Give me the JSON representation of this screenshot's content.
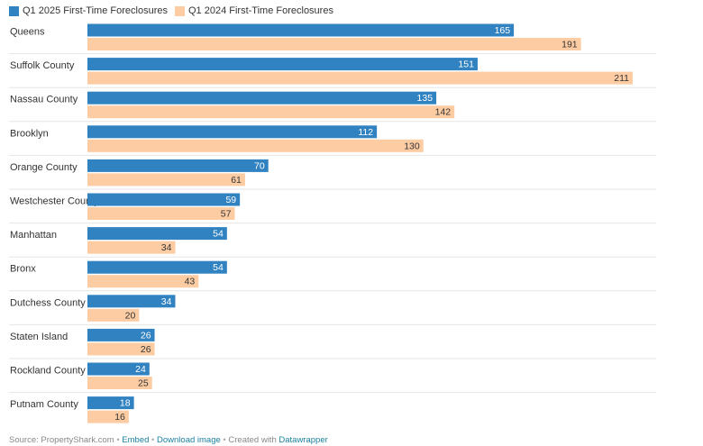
{
  "legend": [
    {
      "label": "Q1 2025 First-Time Foreclosures",
      "color": "#3182c1"
    },
    {
      "label": "Q1 2024 First-Time Foreclosures",
      "color": "#fdcca3"
    }
  ],
  "chart_data": {
    "type": "bar",
    "orientation": "horizontal",
    "categories": [
      "Queens",
      "Suffolk County",
      "Nassau County",
      "Brooklyn",
      "Orange County",
      "Westchester County",
      "Manhattan",
      "Bronx",
      "Dutchess County",
      "Staten Island",
      "Rockland County",
      "Putnam County"
    ],
    "series": [
      {
        "name": "Q1 2025 First-Time Foreclosures",
        "color": "#3182c1",
        "values": [
          165,
          151,
          135,
          112,
          70,
          59,
          54,
          54,
          34,
          26,
          24,
          18
        ]
      },
      {
        "name": "Q1 2024 First-Time Foreclosures",
        "color": "#fdcca3",
        "values": [
          191,
          211,
          142,
          130,
          61,
          57,
          34,
          43,
          20,
          26,
          25,
          16
        ]
      }
    ],
    "xlim": [
      0,
      211
    ],
    "data_labels": true,
    "grid": false,
    "legend_position": "top-left"
  },
  "footer": {
    "source": "Source: PropertyShark.com",
    "embed": "Embed",
    "download": "Download image",
    "created": "Created with",
    "tool": "Datawrapper"
  }
}
